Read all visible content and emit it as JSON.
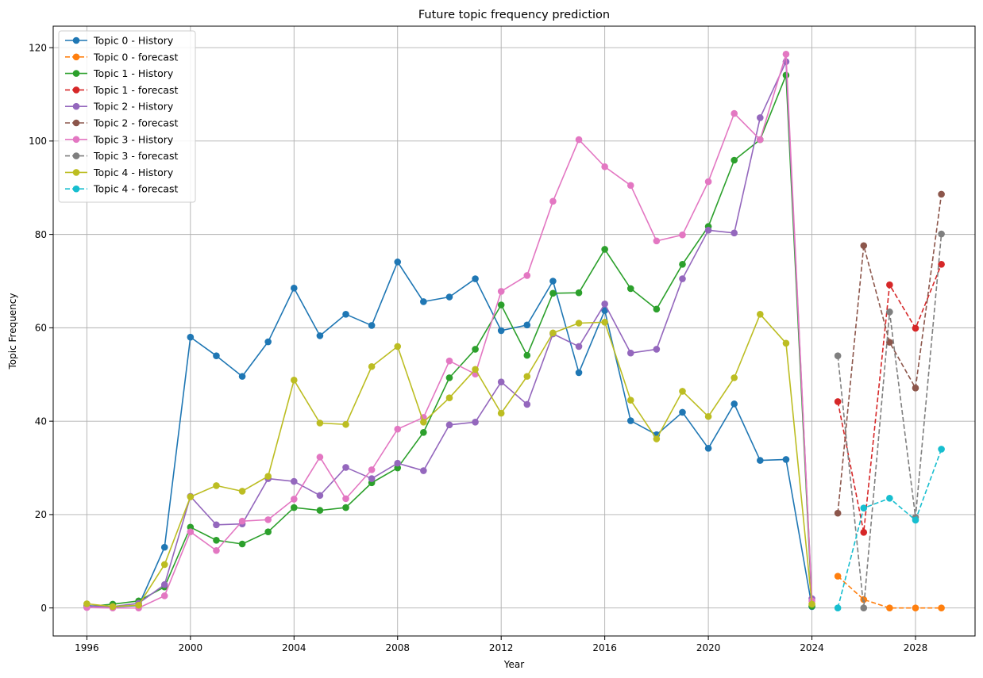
{
  "chart_data": {
    "type": "line",
    "title": "Future topic frequency prediction",
    "xlabel": "Year",
    "ylabel": "Topic Frequency",
    "xlim": [
      1994.7,
      2030.3
    ],
    "ylim": [
      -6,
      124.6
    ],
    "xticks": [
      1996,
      2000,
      2004,
      2008,
      2012,
      2016,
      2020,
      2024,
      2028
    ],
    "yticks": [
      0,
      20,
      40,
      60,
      80,
      100,
      120
    ],
    "grid": true,
    "legend_position": "top-left",
    "series": [
      {
        "name": "Topic 0 - History",
        "color": "#1f77b4",
        "dashed": false,
        "x": [
          1996,
          1997,
          1998,
          1999,
          2000,
          2001,
          2002,
          2003,
          2004,
          2005,
          2006,
          2007,
          2008,
          2009,
          2010,
          2011,
          2012,
          2013,
          2014,
          2015,
          2016,
          2017,
          2018,
          2019,
          2020,
          2021,
          2022,
          2023,
          2024
        ],
        "y": [
          0.5,
          0.2,
          0.5,
          13.0,
          58.0,
          54.0,
          49.6,
          57.0,
          68.5,
          58.3,
          62.9,
          60.5,
          74.1,
          65.6,
          66.6,
          70.5,
          59.4,
          60.6,
          70.0,
          50.4,
          63.7,
          40.1,
          37.1,
          41.9,
          34.2,
          43.7,
          31.6,
          31.8,
          0.3
        ]
      },
      {
        "name": "Topic 0 - forecast",
        "color": "#ff7f0e",
        "dashed": true,
        "x": [
          2025,
          2026,
          2027,
          2028,
          2029
        ],
        "y": [
          6.8,
          1.8,
          0.0,
          0.0,
          0.0
        ]
      },
      {
        "name": "Topic 1 - History",
        "color": "#2ca02c",
        "dashed": false,
        "x": [
          1996,
          1997,
          1998,
          1999,
          2000,
          2001,
          2002,
          2003,
          2004,
          2005,
          2006,
          2007,
          2008,
          2009,
          2010,
          2011,
          2012,
          2013,
          2014,
          2015,
          2016,
          2017,
          2018,
          2019,
          2020,
          2021,
          2022,
          2023,
          2024
        ],
        "y": [
          0.3,
          0.8,
          1.5,
          4.5,
          17.3,
          14.5,
          13.7,
          16.3,
          21.5,
          20.9,
          21.5,
          26.8,
          30.0,
          37.6,
          49.3,
          55.4,
          64.9,
          54.1,
          67.4,
          67.5,
          76.8,
          68.4,
          64.0,
          73.6,
          81.7,
          95.9,
          100.3,
          114.1,
          0.4
        ]
      },
      {
        "name": "Topic 1 - forecast",
        "color": "#d62728",
        "dashed": true,
        "x": [
          2025,
          2026,
          2027,
          2028,
          2029
        ],
        "y": [
          44.2,
          16.2,
          69.2,
          59.9,
          73.6
        ]
      },
      {
        "name": "Topic 2 - History",
        "color": "#9467bd",
        "dashed": false,
        "x": [
          1996,
          1997,
          1998,
          1999,
          2000,
          2001,
          2002,
          2003,
          2004,
          2005,
          2006,
          2007,
          2008,
          2009,
          2010,
          2011,
          2012,
          2013,
          2014,
          2015,
          2016,
          2017,
          2018,
          2019,
          2020,
          2021,
          2022,
          2023,
          2024
        ],
        "y": [
          0.4,
          0.3,
          1.0,
          5.0,
          23.9,
          17.8,
          18.0,
          27.7,
          27.1,
          24.1,
          30.1,
          27.7,
          31.0,
          29.4,
          39.2,
          39.8,
          48.4,
          43.6,
          58.7,
          56.0,
          65.1,
          54.6,
          55.4,
          70.5,
          80.9,
          80.3,
          105.0,
          117.0,
          2.0
        ]
      },
      {
        "name": "Topic 2 - forecast",
        "color": "#8c564b",
        "dashed": true,
        "x": [
          2025,
          2026,
          2027,
          2028,
          2029
        ],
        "y": [
          20.3,
          77.6,
          56.9,
          47.1,
          88.6
        ]
      },
      {
        "name": "Topic 3 - History",
        "color": "#e377c2",
        "dashed": false,
        "x": [
          1996,
          1997,
          1998,
          1999,
          2000,
          2001,
          2002,
          2003,
          2004,
          2005,
          2006,
          2007,
          2008,
          2009,
          2010,
          2011,
          2012,
          2013,
          2014,
          2015,
          2016,
          2017,
          2018,
          2019,
          2020,
          2021,
          2022,
          2023,
          2024
        ],
        "y": [
          0.1,
          0.0,
          0.0,
          2.6,
          16.3,
          12.3,
          18.6,
          18.9,
          23.3,
          32.3,
          23.4,
          29.6,
          38.3,
          40.8,
          52.9,
          50.1,
          67.8,
          71.2,
          87.1,
          100.3,
          94.5,
          90.5,
          78.6,
          79.9,
          91.3,
          105.9,
          100.3,
          118.6,
          1.5
        ]
      },
      {
        "name": "Topic 3 - forecast",
        "color": "#7f7f7f",
        "dashed": true,
        "x": [
          2025,
          2026,
          2027,
          2028,
          2029
        ],
        "y": [
          54.0,
          0.0,
          63.4,
          19.4,
          80.1
        ]
      },
      {
        "name": "Topic 4 - History",
        "color": "#bcbd22",
        "dashed": false,
        "x": [
          1996,
          1997,
          1998,
          1999,
          2000,
          2001,
          2002,
          2003,
          2004,
          2005,
          2006,
          2007,
          2008,
          2009,
          2010,
          2011,
          2012,
          2013,
          2014,
          2015,
          2016,
          2017,
          2018,
          2019,
          2020,
          2021,
          2022,
          2023,
          2024
        ],
        "y": [
          0.9,
          0.3,
          0.6,
          9.3,
          23.8,
          26.2,
          25.0,
          28.2,
          48.8,
          39.6,
          39.3,
          51.7,
          56.0,
          39.8,
          45.0,
          51.1,
          41.7,
          49.6,
          58.9,
          61.0,
          61.2,
          44.5,
          36.2,
          46.4,
          41.0,
          49.3,
          62.9,
          56.7,
          0.8
        ]
      },
      {
        "name": "Topic 4 - forecast",
        "color": "#17becf",
        "dashed": true,
        "x": [
          2025,
          2026,
          2027,
          2028,
          2029
        ],
        "y": [
          0.0,
          21.4,
          23.5,
          18.8,
          34.0
        ]
      }
    ]
  }
}
